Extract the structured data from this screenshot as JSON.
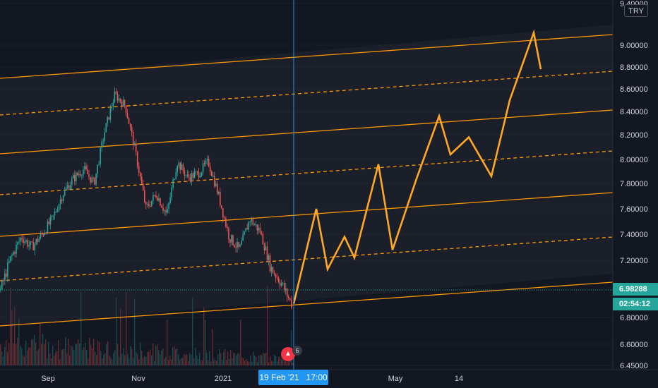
{
  "currency": "TRY",
  "price_axis": {
    "ticks": [
      "6.45000",
      "6.60000",
      "6.80000",
      "7.00000",
      "7.20000",
      "7.40000",
      "7.60000",
      "7.80000",
      "8.00000",
      "8.20000",
      "8.40000",
      "8.60000",
      "8.80000",
      "9.00000",
      "9.40000"
    ],
    "last_price": "6.98288",
    "countdown": "02:54:12"
  },
  "time_axis": {
    "ticks": [
      "Sep",
      "Nov",
      "2021",
      "May",
      "14"
    ],
    "crosshair_label": "19 Feb '21   17:00"
  },
  "events": {
    "dividend_icon": "dividend-icon",
    "dividend_count": "6"
  },
  "colors": {
    "background": "#131722",
    "up": "#26a69a",
    "down": "#ef5350",
    "channel": "#ff9800",
    "projection": "#ffa726",
    "crosshair": "#2196f3",
    "grid": "#2a2e39"
  },
  "chart_data": {
    "type": "candlestick",
    "symbol_currency": "TRY",
    "price_range": [
      6.45,
      9.4
    ],
    "last_price": 6.98288,
    "x_ticks": [
      "Sep",
      "Nov",
      "2021",
      "May",
      "14"
    ],
    "y_ticks": [
      6.45,
      6.6,
      6.8,
      7.0,
      7.2,
      7.4,
      7.6,
      7.8,
      8.0,
      8.2,
      8.4,
      8.6,
      8.8,
      9.0,
      9.4
    ],
    "price_path": [
      {
        "t": "Aug 01",
        "p": 7.0
      },
      {
        "t": "Aug 05",
        "p": 7.22
      },
      {
        "t": "Aug 12",
        "p": 7.38
      },
      {
        "t": "Aug 20",
        "p": 7.3
      },
      {
        "t": "Aug 30",
        "p": 7.4
      },
      {
        "t": "Sep 08",
        "p": 7.52
      },
      {
        "t": "Sep 18",
        "p": 7.72
      },
      {
        "t": "Sep 25",
        "p": 7.84
      },
      {
        "t": "Oct 05",
        "p": 7.92
      },
      {
        "t": "Oct 12",
        "p": 7.8
      },
      {
        "t": "Oct 20",
        "p": 8.22
      },
      {
        "t": "Oct 28",
        "p": 8.55
      },
      {
        "t": "Nov 03",
        "p": 8.45
      },
      {
        "t": "Nov 06",
        "p": 8.05
      },
      {
        "t": "Nov 09",
        "p": 7.6
      },
      {
        "t": "Nov 14",
        "p": 7.72
      },
      {
        "t": "Nov 19",
        "p": 7.55
      },
      {
        "t": "Nov 24",
        "p": 7.98
      },
      {
        "t": "Dec 02",
        "p": 7.85
      },
      {
        "t": "Dec 10",
        "p": 7.88
      },
      {
        "t": "Dec 18",
        "p": 7.98
      },
      {
        "t": "Dec 26",
        "p": 7.7
      },
      {
        "t": "Jan 04",
        "p": 7.38
      },
      {
        "t": "Jan 12",
        "p": 7.28
      },
      {
        "t": "Jan 20",
        "p": 7.52
      },
      {
        "t": "Jan 28",
        "p": 7.42
      },
      {
        "t": "Feb 05",
        "p": 7.15
      },
      {
        "t": "Feb 12",
        "p": 7.05
      },
      {
        "t": "Feb 19",
        "p": 6.9
      }
    ],
    "volume_profile": "bars at bottom, decreasing over time",
    "channel": {
      "style": "parallel channel, solid lines with dashed midlines",
      "lower_line_color": "#ff9800"
    },
    "projection": {
      "color": "#ffa726",
      "start_time": "19 Feb '21",
      "path": [
        6.9,
        7.6,
        7.14,
        7.38,
        7.22,
        7.96,
        7.28,
        7.84,
        8.36,
        8.04,
        8.18,
        7.86,
        8.5,
        9.12,
        8.78
      ]
    },
    "crosshair_time": "19 Feb '21 17:00"
  }
}
